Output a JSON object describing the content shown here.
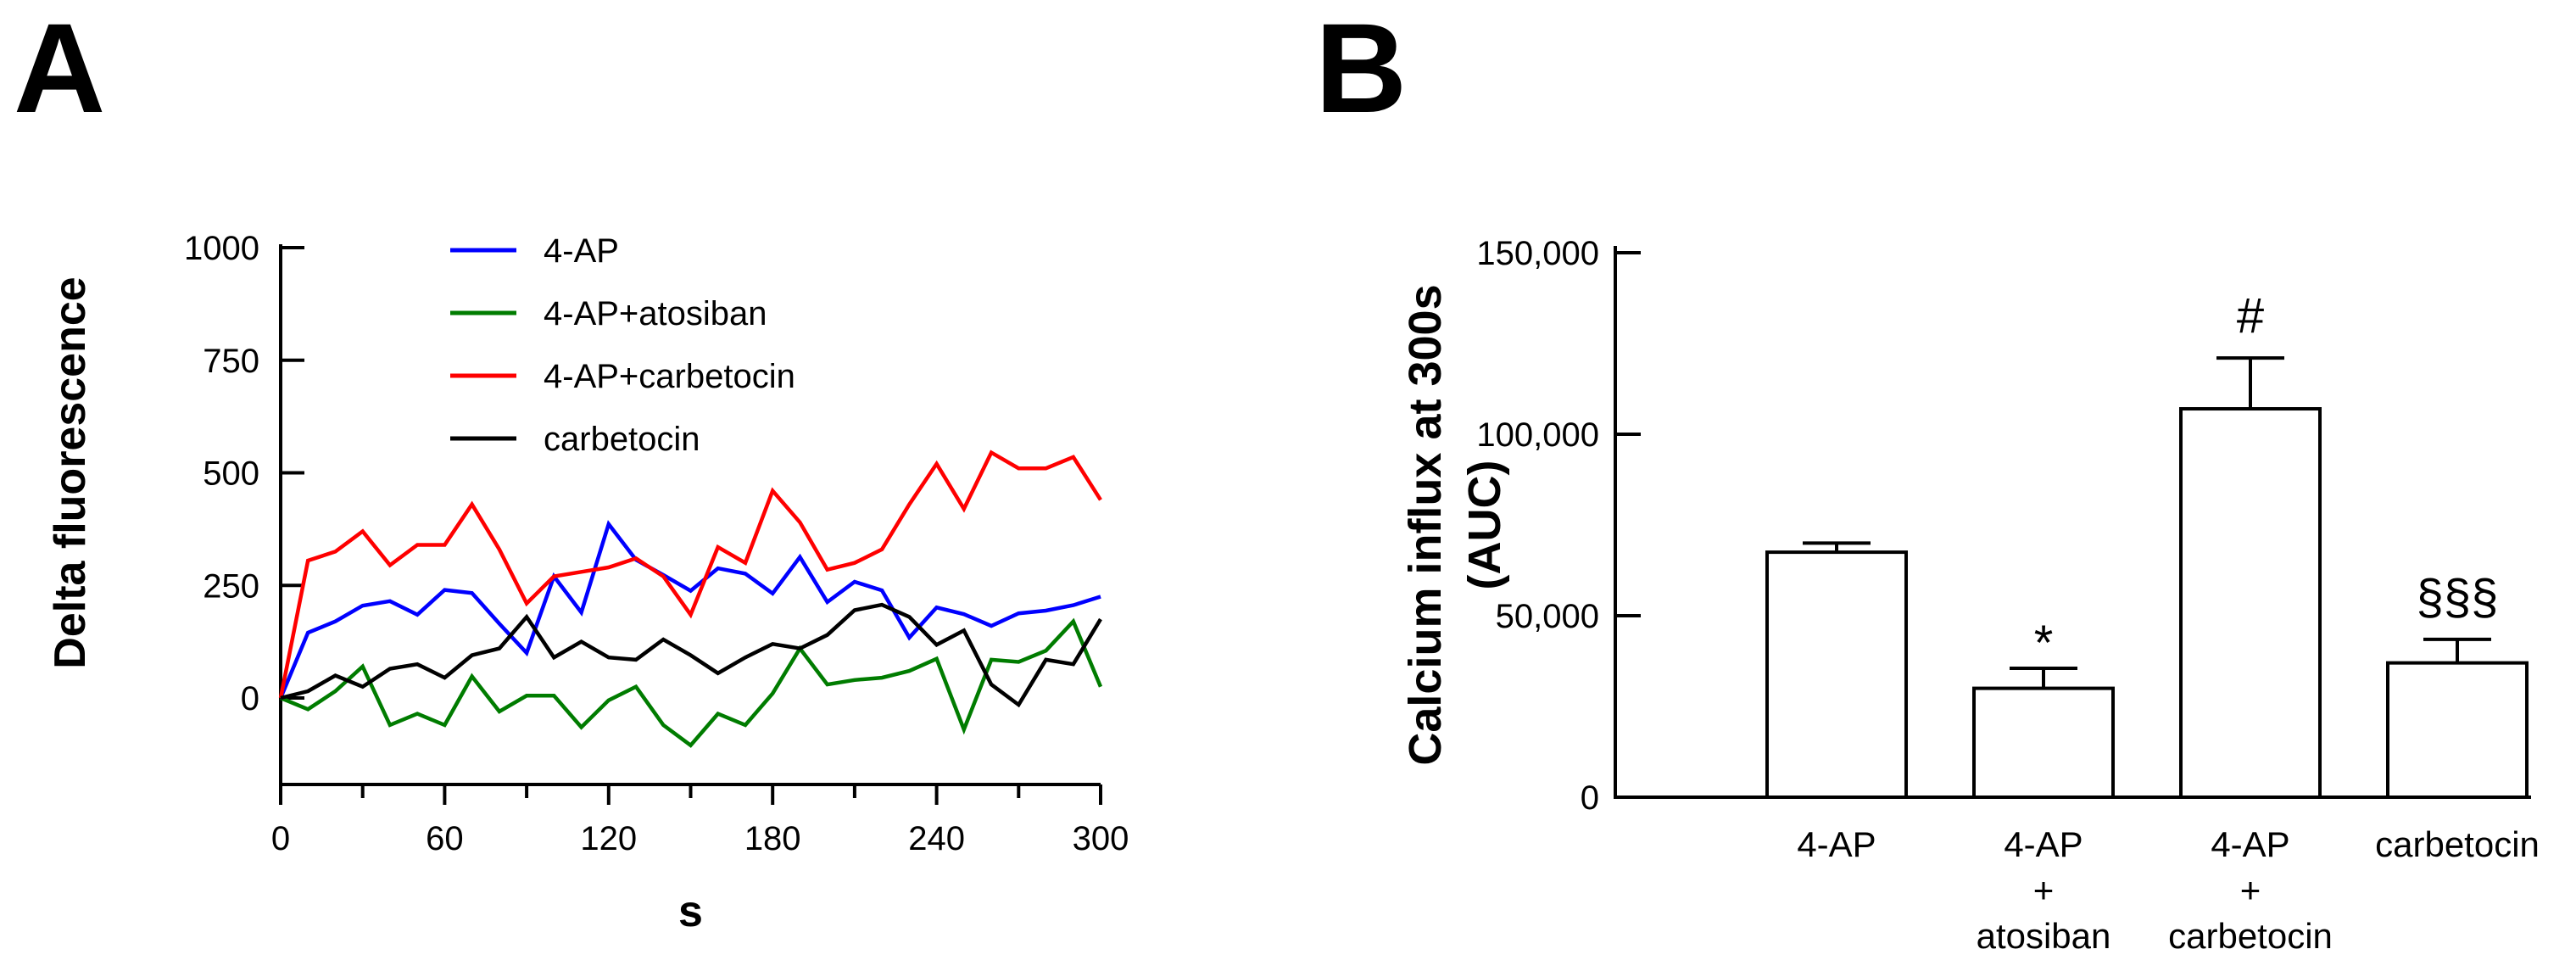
{
  "panels": {
    "a": {
      "label": "A"
    },
    "b": {
      "label": "B"
    }
  },
  "chart_data": [
    {
      "panel": "A",
      "type": "line",
      "title": "",
      "xlabel": "s",
      "ylabel": "Delta fluorescence",
      "xlim": [
        0,
        300
      ],
      "ylim": [
        -190,
        1000
      ],
      "xticks": [
        0,
        60,
        120,
        180,
        240,
        300
      ],
      "xminorticks": [
        30,
        90,
        150,
        210,
        270
      ],
      "yticks": [
        0,
        250,
        500,
        750,
        1000
      ],
      "grid": false,
      "legend_position": "inside-top-left",
      "x": [
        0,
        10,
        20,
        30,
        40,
        50,
        60,
        70,
        80,
        90,
        100,
        110,
        120,
        130,
        140,
        150,
        160,
        170,
        180,
        190,
        200,
        210,
        220,
        230,
        240,
        250,
        260,
        270,
        280,
        290,
        300
      ],
      "series": [
        {
          "name": "4-AP",
          "color": "#0000fe",
          "values": [
            0,
            145,
            170,
            205,
            215,
            185,
            240,
            233,
            165,
            100,
            270,
            190,
            386,
            307,
            273,
            238,
            288,
            276,
            232,
            313,
            213,
            258,
            239,
            134,
            201,
            186,
            160,
            188,
            194,
            206,
            225
          ]
        },
        {
          "name": "4-AP+atosiban",
          "color": "#007c00",
          "values": [
            0,
            -25,
            15,
            70,
            -60,
            -35,
            -60,
            48,
            -30,
            5,
            5,
            -65,
            -5,
            25,
            -60,
            -105,
            -35,
            -60,
            10,
            110,
            30,
            40,
            45,
            60,
            87,
            -70,
            85,
            80,
            105,
            170,
            25
          ]
        },
        {
          "name": "4-AP+carbetocin",
          "color": "#fe0000",
          "values": [
            0,
            305,
            325,
            370,
            295,
            340,
            340,
            430,
            330,
            210,
            270,
            280,
            290,
            310,
            270,
            185,
            335,
            300,
            460,
            390,
            285,
            300,
            330,
            430,
            520,
            420,
            545,
            510,
            510,
            535,
            440
          ]
        },
        {
          "name": "carbetocin",
          "color": "#000000",
          "values": [
            0,
            15,
            50,
            25,
            65,
            75,
            45,
            95,
            110,
            180,
            90,
            125,
            90,
            85,
            130,
            95,
            55,
            90,
            120,
            110,
            140,
            195,
            207,
            180,
            118,
            150,
            30,
            -15,
            85,
            75,
            175
          ]
        }
      ]
    },
    {
      "panel": "B",
      "type": "bar",
      "title": "",
      "ylabel_lines": [
        "Calcium influx at 300s",
        "(AUC)"
      ],
      "ylim": [
        0,
        150000
      ],
      "yticks": [
        0,
        50000,
        100000,
        150000
      ],
      "ytick_labels": [
        "0",
        "50,000",
        "100,000",
        "150,000"
      ],
      "grid": false,
      "bar_fill": "#ffffff",
      "bar_stroke": "#000000",
      "categories": [
        "4-AP",
        "4-AP + atosiban",
        "4-AP + carbetocin",
        "carbetocin"
      ],
      "category_label_lines": [
        [
          "4-AP",
          "",
          ""
        ],
        [
          "4-AP",
          "+",
          "atosiban"
        ],
        [
          "4-AP",
          "+",
          "carbetocin"
        ],
        [
          "carbetocin",
          "",
          ""
        ]
      ],
      "values": [
        67500,
        30000,
        107000,
        37000
      ],
      "errors": [
        2500,
        5500,
        14000,
        6500
      ],
      "annotations": [
        "",
        "*",
        "#",
        "§§§"
      ]
    }
  ]
}
